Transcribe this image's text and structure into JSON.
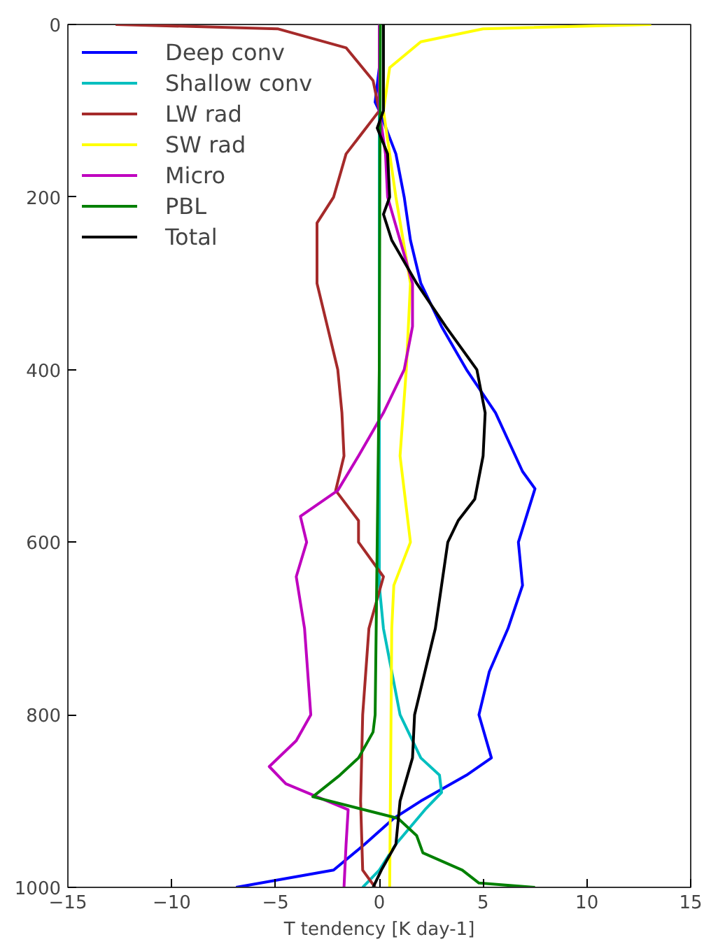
{
  "chart_data": {
    "type": "line",
    "xlabel": "T tendency [K day-1]",
    "xlim": [
      -15,
      15
    ],
    "xticks": [
      -15,
      -10,
      -5,
      0,
      5,
      10,
      15
    ],
    "ylim": [
      1000,
      0
    ],
    "yticks": [
      0,
      200,
      400,
      600,
      800,
      1000
    ],
    "grid": false,
    "legend": "top left",
    "marker": "none",
    "line_style": "solid",
    "series": [
      {
        "name": "Deep conv",
        "color": "#0000ff",
        "x": [
          0,
          0,
          -0.2,
          0,
          0.8,
          1.2,
          1.5,
          2.0,
          3.0,
          4.2,
          5.6,
          6.9,
          7.5,
          6.7,
          6.9,
          6.2,
          5.3,
          4.8,
          5.4,
          4.2,
          2.0,
          0.7,
          -0.7,
          -2.2,
          -6.9
        ],
        "values": [
          0,
          50,
          90,
          100,
          150,
          200,
          250,
          300,
          350,
          400,
          450,
          518,
          538,
          600,
          650,
          700,
          750,
          800,
          850,
          870,
          900,
          920,
          950,
          980,
          1000
        ]
      },
      {
        "name": "Shallow conv",
        "color": "#00bfbf",
        "x": [
          0,
          0,
          0,
          0.2,
          0.6,
          1.0,
          2.0,
          2.9,
          3.0,
          2.2,
          0.8,
          0,
          -0.8
        ],
        "values": [
          0,
          300,
          650,
          700,
          750,
          800,
          850,
          870,
          890,
          910,
          950,
          980,
          1000
        ]
      },
      {
        "name": "LW rad",
        "color": "#a52a2a",
        "x": [
          -12.7,
          -4.9,
          -1.6,
          -0.3,
          0,
          -1.6,
          -2.2,
          -3.0,
          -3.0,
          -3.0,
          -2.5,
          -2.0,
          -1.8,
          -1.7,
          -2.1,
          -1.0,
          -1.0,
          0.2,
          -0.5,
          -0.8,
          -0.9,
          -0.8,
          -0.2
        ],
        "values": [
          0,
          5,
          27,
          65,
          100,
          150,
          200,
          230,
          250,
          300,
          350,
          400,
          450,
          500,
          540,
          575,
          600,
          640,
          700,
          800,
          900,
          980,
          1000
        ]
      },
      {
        "name": "SW rad",
        "color": "#ffff00",
        "x": [
          13.1,
          5,
          2,
          0.5,
          0.2,
          0.5,
          0.8,
          1.5,
          1.3,
          1.0,
          1.3,
          1.5,
          0.7,
          0.6,
          0.5
        ],
        "values": [
          0,
          5,
          20,
          50,
          100,
          150,
          200,
          300,
          400,
          500,
          560,
          600,
          650,
          700,
          1000
        ]
      },
      {
        "name": "Micro",
        "color": "#bf00bf",
        "x": [
          0,
          0,
          0.3,
          0.4,
          1.0,
          1.6,
          1.6,
          1.2,
          0.2,
          -1.0,
          -2.0,
          -3.8,
          -3.5,
          -4.0,
          -3.6,
          -3.3,
          -4.0,
          -5.3,
          -4.5,
          -2.5,
          -1.5,
          -1.6,
          -1.7
        ],
        "values": [
          0,
          100,
          150,
          200,
          250,
          300,
          350,
          400,
          450,
          500,
          540,
          570,
          600,
          640,
          700,
          800,
          830,
          860,
          880,
          900,
          910,
          950,
          1000
        ]
      },
      {
        "name": "PBL",
        "color": "#008000",
        "x": [
          0.05,
          0,
          -0.2,
          -0.3,
          -1.0,
          -1.9,
          -3.2,
          0.9,
          1.8,
          2.1,
          4.0,
          4.8,
          7.5
        ],
        "values": [
          0,
          400,
          800,
          820,
          850,
          870,
          895,
          920,
          940,
          960,
          980,
          995,
          1000
        ]
      },
      {
        "name": "Total",
        "color": "#000000",
        "x": [
          0.2,
          0.2,
          -0.1,
          0.4,
          0.5,
          0.2,
          0.6,
          1.8,
          3.2,
          4.7,
          5.1,
          5.0,
          4.6,
          3.8,
          3.3,
          3.0,
          2.7,
          2.2,
          1.7,
          1.6,
          1.0,
          0.8,
          0.1,
          -0.3
        ],
        "values": [
          0,
          100,
          120,
          150,
          200,
          220,
          250,
          300,
          350,
          400,
          450,
          500,
          550,
          575,
          600,
          650,
          700,
          750,
          800,
          850,
          900,
          950,
          980,
          1000
        ]
      }
    ]
  }
}
